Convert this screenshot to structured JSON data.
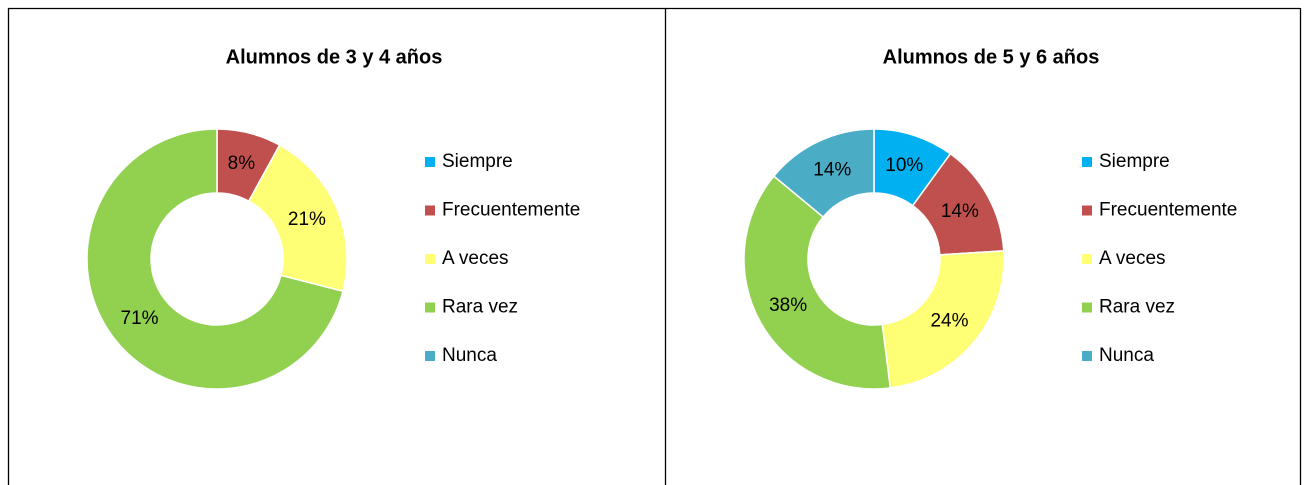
{
  "chart_data": [
    {
      "type": "donut",
      "title": "Alumnos de 3 y 4 años",
      "categories": [
        "Siempre",
        "Frecuentemente",
        "A veces",
        "Rara vez",
        "Nunca"
      ],
      "values": [
        0,
        8,
        21,
        71,
        0
      ],
      "value_labels": [
        null,
        "8%",
        "21%",
        "71%",
        null
      ],
      "colors": [
        "#00b0f0",
        "#c0504d",
        "#ffff75",
        "#92d050",
        "#4bacc6"
      ]
    },
    {
      "type": "donut",
      "title": "Alumnos de 5 y 6 años",
      "categories": [
        "Siempre",
        "Frecuentemente",
        "A veces",
        "Rara vez",
        "Nunca"
      ],
      "values": [
        10,
        14,
        24,
        38,
        14
      ],
      "value_labels": [
        "10%",
        "14%",
        "24%",
        "38%",
        "14%"
      ],
      "colors": [
        "#00b0f0",
        "#c0504d",
        "#ffff75",
        "#92d050",
        "#4bacc6"
      ]
    }
  ]
}
